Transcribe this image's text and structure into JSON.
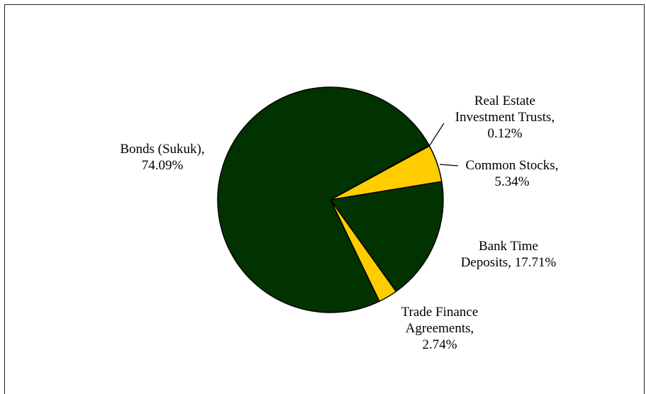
{
  "chart_data": {
    "type": "pie",
    "title": "",
    "slices": [
      {
        "label_lines": [
          "Real Estate",
          "Investment Trusts,",
          "0.12%"
        ],
        "value": 0.12,
        "color": "#ffcc00"
      },
      {
        "label_lines": [
          "Common Stocks,",
          "5.34%"
        ],
        "value": 5.34,
        "color": "#ffcc00"
      },
      {
        "label_lines": [
          "Bank Time",
          "Deposits, 17.71%"
        ],
        "value": 17.71,
        "color": "#003300"
      },
      {
        "label_lines": [
          "Trade Finance",
          "Agreements,",
          "2.74%"
        ],
        "value": 2.74,
        "color": "#ffcc00"
      },
      {
        "label_lines": [
          "Bonds (Sukuk),",
          "74.09%"
        ],
        "value": 74.09,
        "color": "#003300"
      }
    ]
  }
}
